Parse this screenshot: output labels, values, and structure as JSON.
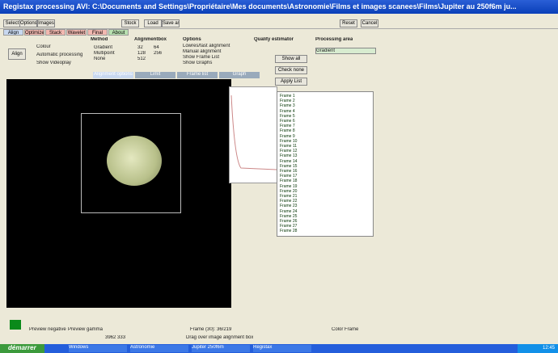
{
  "window": {
    "title": "Registax processing AVI: C:\\Documents and Settings\\Propriétaire\\Mes documents\\Astronomie\\Films et images scanees\\Films\\Jupiter au 250f6m ju..."
  },
  "toolbar": {
    "buttons": [
      "Select",
      "Options",
      "Images",
      "Stock",
      "Load",
      "Save as",
      "Reset",
      "Cancel"
    ]
  },
  "tabs": [
    "Align",
    "Optimize",
    "Stack",
    "Wavelet",
    "Final",
    "About"
  ],
  "panel": {
    "method_title": "Method",
    "methods": [
      "Gradient",
      "Multipoint",
      "None"
    ],
    "alignmentbox_title": "Alignmentbox",
    "box_sizes": [
      "32",
      "64",
      "128",
      "256",
      "512"
    ],
    "options_title": "Options",
    "options": [
      "Lowres/fast alignment",
      "Manual alignment",
      "Show Frame List",
      "Show Graphs"
    ],
    "quality_title": "Quality estimator",
    "processing_title": "Processing area",
    "processing_value": "Gradient"
  },
  "left": {
    "button": "Align",
    "checks": [
      "Colour",
      "Automatic processing",
      "Show Videoplay"
    ]
  },
  "subtabs": [
    "Alignment options",
    "Limit",
    "Frame list",
    "Graph"
  ],
  "frame_list": {
    "buttons": [
      "Show all",
      "Check none",
      "Apply List"
    ],
    "frames": [
      "Frame 1",
      "Frame 2",
      "Frame 3",
      "Frame 4",
      "Frame 5",
      "Frame 6",
      "Frame 7",
      "Frame 8",
      "Frame 9",
      "Frame 10",
      "Frame 11",
      "Frame 12",
      "Frame 13",
      "Frame 14",
      "Frame 15",
      "Frame 16",
      "Frame 17",
      "Frame 18",
      "Frame 19",
      "Frame 20",
      "Frame 21",
      "Frame 22",
      "Frame 23",
      "Frame 24",
      "Frame 25",
      "Frame 26",
      "Frame 27",
      "Frame 28"
    ]
  },
  "status": {
    "checks": [
      "Preview negative",
      "Preview gamma"
    ],
    "frame": "Frame (30): 36/219",
    "color_frame": "Color Frame",
    "sub": "3962 333",
    "hint": "Drag over image alignment box"
  },
  "taskbar": {
    "start": "démarrer",
    "items": [
      "Windows",
      "Astronomie",
      "Jupiter 250f6m",
      "Registax"
    ],
    "clock": "12:45"
  }
}
